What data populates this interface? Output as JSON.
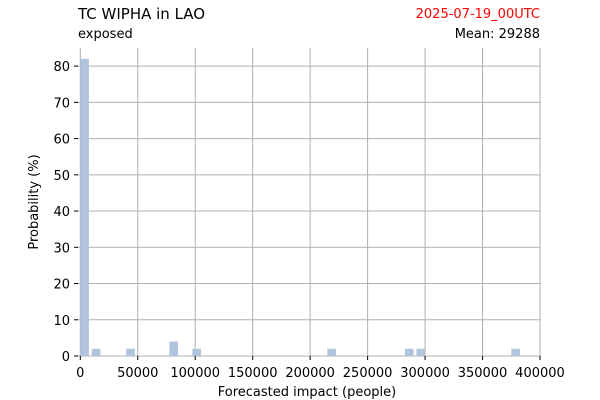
{
  "header": {
    "title": "TC WIPHA in LAO",
    "subtitle": "exposed",
    "date": "2025-07-19_00UTC",
    "mean_label": "Mean: 29288",
    "date_color": "#ff0000"
  },
  "chart_data": {
    "type": "bar",
    "title": "TC WIPHA in LAO",
    "subtitle": "exposed",
    "xlabel": "Forecasted impact (people)",
    "ylabel": "Probability (%)",
    "xlim": [
      -2000,
      400000
    ],
    "ylim": [
      0,
      85
    ],
    "xticks": [
      0,
      50000,
      100000,
      150000,
      200000,
      250000,
      300000,
      350000,
      400000
    ],
    "yticks": [
      0,
      10,
      20,
      30,
      40,
      50,
      60,
      70,
      80
    ],
    "grid": true,
    "bar_color": "#b0c4de",
    "bins": [
      {
        "x0": 0,
        "x1": 7500,
        "value": 82
      },
      {
        "x0": 10000,
        "x1": 17500,
        "value": 2
      },
      {
        "x0": 40000,
        "x1": 47500,
        "value": 2
      },
      {
        "x0": 77500,
        "x1": 85000,
        "value": 4
      },
      {
        "x0": 97500,
        "x1": 105000,
        "value": 2
      },
      {
        "x0": 215000,
        "x1": 222500,
        "value": 2
      },
      {
        "x0": 282500,
        "x1": 290000,
        "value": 2
      },
      {
        "x0": 292500,
        "x1": 300000,
        "value": 2
      },
      {
        "x0": 375000,
        "x1": 382500,
        "value": 2
      }
    ]
  }
}
